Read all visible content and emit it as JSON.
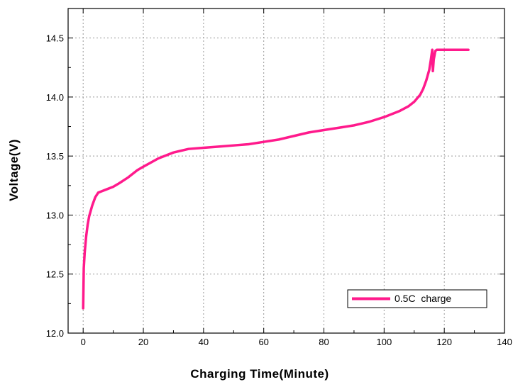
{
  "chart_data": {
    "type": "line",
    "title": "",
    "xlabel": "Charging Time(Minute)",
    "ylabel": "Voltage(V)",
    "xlim": [
      -5,
      140
    ],
    "ylim": [
      12.0,
      14.75
    ],
    "xticks": [
      0,
      20,
      40,
      60,
      80,
      100,
      120,
      140
    ],
    "yticks": [
      12.0,
      12.5,
      13.0,
      13.5,
      14.0,
      14.5
    ],
    "ytick_labels": [
      "12.0",
      "12.5",
      "13.0",
      "13.5",
      "14.0",
      "14.5"
    ],
    "grid": true,
    "legend": "bottom-right",
    "series": [
      {
        "name": "0.5C  charge",
        "color": "#ff1a8c",
        "x": [
          0,
          0.2,
          0.5,
          1,
          1.5,
          2,
          3,
          4,
          5,
          6,
          8,
          10,
          12,
          15,
          18,
          20,
          25,
          30,
          35,
          40,
          45,
          50,
          55,
          60,
          65,
          70,
          75,
          80,
          85,
          90,
          95,
          100,
          105,
          108,
          110,
          112,
          113,
          114,
          115,
          115.5,
          116,
          116.2,
          116.5,
          116.8,
          117,
          117.5,
          120,
          125,
          128
        ],
        "y": [
          12.21,
          12.55,
          12.68,
          12.82,
          12.92,
          12.99,
          13.08,
          13.15,
          13.19,
          13.2,
          13.22,
          13.24,
          13.27,
          13.32,
          13.38,
          13.41,
          13.48,
          13.53,
          13.56,
          13.57,
          13.58,
          13.59,
          13.6,
          13.62,
          13.64,
          13.67,
          13.7,
          13.72,
          13.74,
          13.76,
          13.79,
          13.83,
          13.88,
          13.92,
          13.96,
          14.02,
          14.07,
          14.14,
          14.23,
          14.31,
          14.4,
          14.22,
          14.32,
          14.36,
          14.39,
          14.4,
          14.4,
          14.4,
          14.4
        ]
      }
    ]
  }
}
